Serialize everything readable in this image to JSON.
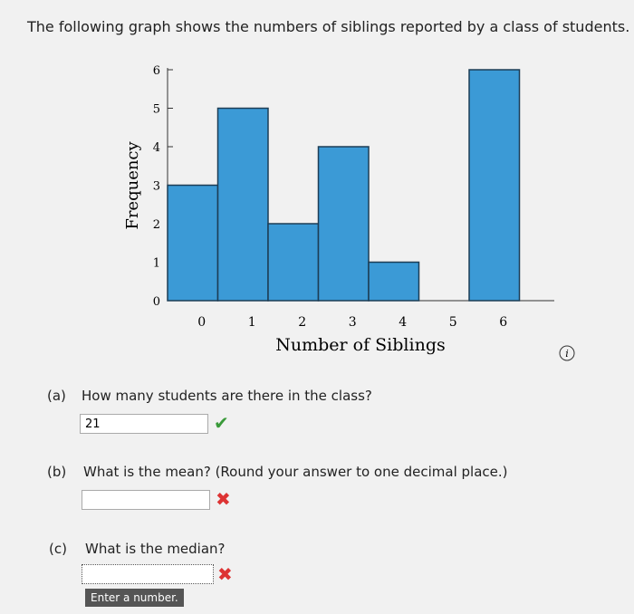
{
  "intro": "The following graph shows the numbers of siblings reported by a class of students.",
  "chart_data": {
    "type": "bar",
    "x_label": "Number of Siblings",
    "y_label": "Frequency",
    "categories": [
      "0",
      "1",
      "2",
      "3",
      "4",
      "5",
      "6"
    ],
    "values": [
      3,
      5,
      2,
      4,
      1,
      0,
      6
    ],
    "color": "#3b9ad6",
    "ylim": [
      0,
      6
    ],
    "yticks": [
      0,
      1,
      2,
      3,
      4,
      5,
      6
    ]
  },
  "questions": [
    {
      "label": "(a)",
      "text": "How many students are there in the class?",
      "answer": "21"
    },
    {
      "label": "(b)",
      "text": "What is the mean? (Round your answer to one decimal place.)"
    },
    {
      "label": "(c)",
      "text": "What is the median?",
      "hint": "Enter a number."
    }
  ]
}
